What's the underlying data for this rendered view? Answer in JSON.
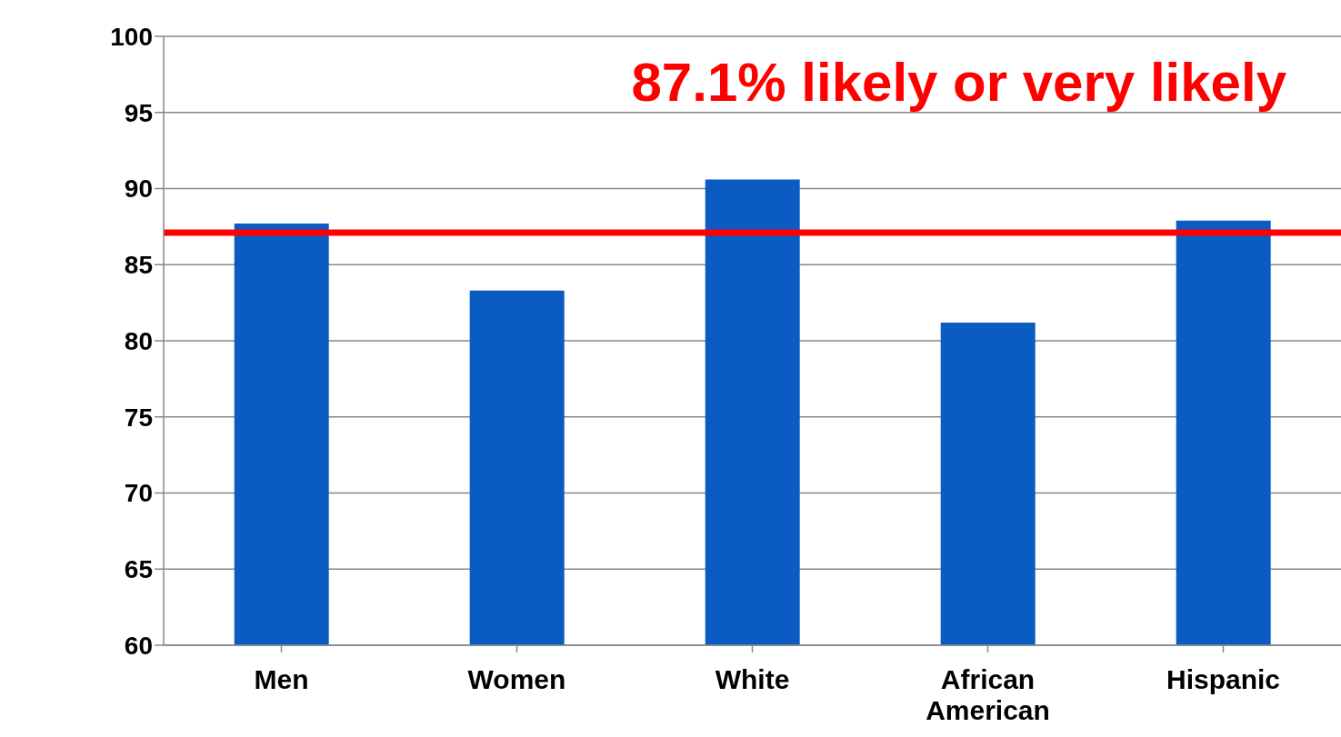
{
  "chart_data": {
    "type": "bar",
    "categories": [
      "Men",
      "Women",
      "White",
      "African American",
      "Hispanic"
    ],
    "values": [
      87.7,
      83.3,
      90.6,
      81.2,
      87.9
    ],
    "color": "#0a5cc2",
    "ylim": [
      60,
      100
    ],
    "yticks": [
      60,
      65,
      70,
      75,
      80,
      85,
      90,
      95,
      100
    ],
    "grid": "y",
    "ref_lines": [
      {
        "axis": "y",
        "value": 87.1,
        "label": "87.1% likely or very likely",
        "color": "#ff0000"
      }
    ]
  }
}
